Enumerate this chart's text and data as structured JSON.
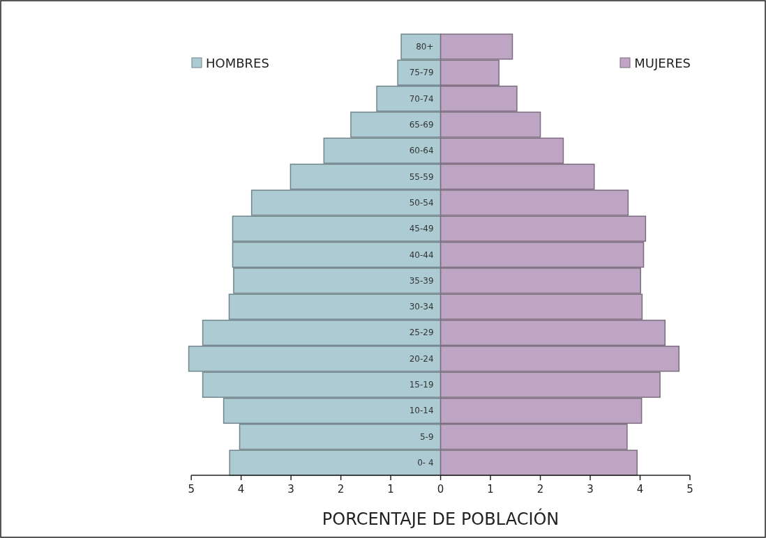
{
  "chart_data": {
    "type": "bar",
    "orientation": "horizontal",
    "stacked": true,
    "legend": "top",
    "xlabel": "PORCENTAJE DE POBLACIÓN",
    "categories": [
      "80+",
      "75-79",
      "70-74",
      "65-69",
      "60-64",
      "55-59",
      "50-54",
      "45-49",
      "40-44",
      "35-39",
      "30-34",
      "25-29",
      "20-24",
      "15-19",
      "10-14",
      "5-9",
      "0- 4"
    ],
    "series": [
      {
        "name": "HOMBRES",
        "color": "#adcbd3",
        "values": [
          -0.79,
          -0.86,
          -1.28,
          -1.8,
          -2.34,
          -3.01,
          -3.79,
          -4.17,
          -4.17,
          -4.15,
          -4.24,
          -4.77,
          -5.05,
          -4.77,
          -4.35,
          -4.03,
          -4.23
        ]
      },
      {
        "name": "MUJERES",
        "color": "#bea5c3",
        "values": [
          1.44,
          1.17,
          1.53,
          2.0,
          2.46,
          3.08,
          3.76,
          4.11,
          4.07,
          4.01,
          4.04,
          4.5,
          4.78,
          4.4,
          4.03,
          3.74,
          3.94
        ]
      }
    ],
    "xlim": [
      -5.1,
      5
    ],
    "xticks": [
      {
        "value": -5,
        "label": "5"
      },
      {
        "value": -4,
        "label": "4"
      },
      {
        "value": -3,
        "label": "3"
      },
      {
        "value": -2,
        "label": "2"
      },
      {
        "value": -1,
        "label": "1"
      },
      0,
      1,
      2,
      3,
      4,
      5
    ]
  }
}
